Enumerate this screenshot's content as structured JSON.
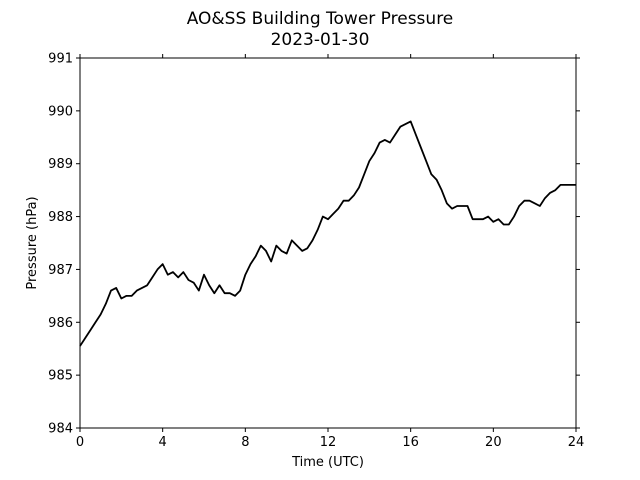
{
  "chart_data": {
    "type": "line",
    "title": "AO&SS Building Tower Pressure",
    "subtitle": "2023-01-30",
    "xlabel": "Time (UTC)",
    "ylabel": "Pressure (hPa)",
    "xlim": [
      0,
      24
    ],
    "ylim": [
      984,
      991
    ],
    "xticks": [
      0,
      4,
      8,
      12,
      16,
      20,
      24
    ],
    "yticks": [
      984,
      985,
      986,
      987,
      988,
      989,
      990,
      991
    ],
    "grid": false,
    "line_color": "#000000",
    "series": [
      {
        "x": [
          0,
          0.25,
          0.5,
          0.75,
          1.0,
          1.25,
          1.5,
          1.75,
          2.0,
          2.25,
          2.5,
          2.75,
          3.0,
          3.25,
          3.5,
          3.75,
          4.0,
          4.25,
          4.5,
          4.75,
          5.0,
          5.25,
          5.5,
          5.75,
          6.0,
          6.25,
          6.5,
          6.75,
          7.0,
          7.25,
          7.5,
          7.75,
          8.0,
          8.25,
          8.5,
          8.75,
          9.0,
          9.25,
          9.5,
          9.75,
          10.0,
          10.25,
          10.5,
          10.75,
          11.0,
          11.25,
          11.5,
          11.75,
          12.0,
          12.25,
          12.5,
          12.75,
          13.0,
          13.25,
          13.5,
          13.75,
          14.0,
          14.25,
          14.5,
          14.75,
          15.0,
          15.25,
          15.5,
          15.75,
          16.0,
          16.25,
          16.5,
          16.75,
          17.0,
          17.25,
          17.5,
          17.75,
          18.0,
          18.25,
          18.5,
          18.75,
          19.0,
          19.25,
          19.5,
          19.75,
          20.0,
          20.25,
          20.5,
          20.75,
          21.0,
          21.25,
          21.5,
          21.75,
          22.0,
          22.25,
          22.5,
          22.75,
          23.0,
          23.25,
          23.5,
          23.75,
          24.0
        ],
        "values": [
          985.55,
          985.7,
          985.85,
          986.0,
          986.15,
          986.35,
          986.6,
          986.65,
          986.45,
          986.5,
          986.5,
          986.6,
          986.65,
          986.7,
          986.85,
          987.0,
          987.1,
          986.9,
          986.95,
          986.85,
          986.95,
          986.8,
          986.75,
          986.6,
          986.9,
          986.7,
          986.55,
          986.7,
          986.55,
          986.55,
          986.5,
          986.6,
          986.9,
          987.1,
          987.25,
          987.45,
          987.35,
          987.15,
          987.45,
          987.35,
          987.3,
          987.55,
          987.45,
          987.35,
          987.4,
          987.55,
          987.75,
          988.0,
          987.95,
          988.05,
          988.15,
          988.3,
          988.3,
          988.4,
          988.55,
          988.8,
          989.05,
          989.2,
          989.4,
          989.45,
          989.4,
          989.55,
          989.7,
          989.75,
          989.8,
          989.55,
          989.3,
          989.05,
          988.8,
          988.7,
          988.5,
          988.25,
          988.15,
          988.2,
          988.2,
          988.2,
          987.95,
          987.95,
          987.95,
          988.0,
          987.9,
          987.95,
          987.85,
          987.85,
          988.0,
          988.2,
          988.3,
          988.3,
          988.25,
          988.2,
          988.35,
          988.45,
          988.5,
          988.6,
          988.6,
          988.6,
          988.6
        ]
      }
    ]
  }
}
